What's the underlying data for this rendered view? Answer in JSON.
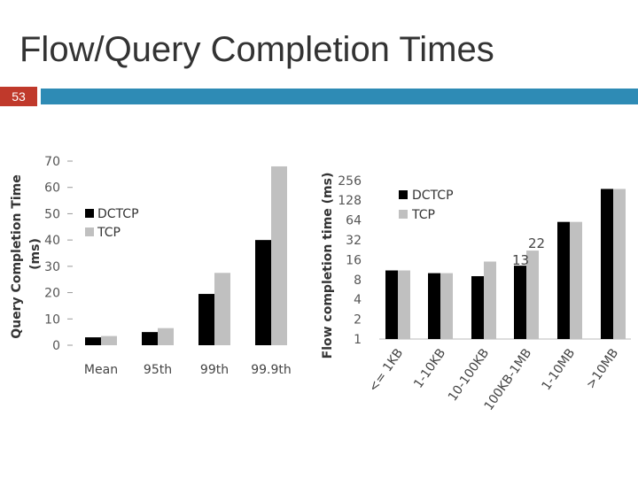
{
  "slide": {
    "title": "Flow/Query Completion Times",
    "number": "53"
  },
  "colors": {
    "dctcp": "#000000",
    "tcp": "#c0c0c0",
    "accent_strip": "#2e8bb5",
    "number_box": "#c0392b"
  },
  "chart_data": [
    {
      "type": "bar",
      "categories": [
        "Mean",
        "95th",
        "99th",
        "99.9th"
      ],
      "series": [
        {
          "name": "DCTCP",
          "values": [
            3,
            5,
            19.5,
            40
          ]
        },
        {
          "name": "TCP",
          "values": [
            3.5,
            6.5,
            27.5,
            68
          ]
        }
      ],
      "ylabel": "Query Completion Time (ms)",
      "ylim": [
        0,
        70
      ],
      "yticks": [
        "0",
        "10",
        "20",
        "30",
        "40",
        "50",
        "60",
        "70"
      ],
      "legend": "left"
    },
    {
      "type": "bar",
      "categories": [
        "<= 1KB",
        "1-10KB",
        "10-100KB",
        "100KB-1MB",
        "1-10MB",
        ">10MB"
      ],
      "series": [
        {
          "name": "DCTCP",
          "values": [
            11,
            10,
            9,
            13,
            60,
            190
          ]
        },
        {
          "name": "TCP",
          "values": [
            11,
            10,
            15,
            22,
            60,
            190
          ]
        }
      ],
      "ylabel": "Flow completion time (ms)",
      "yscale": "log2",
      "ylim": [
        1,
        256
      ],
      "yticks": [
        "1",
        "2",
        "4",
        "8",
        "16",
        "32",
        "64",
        "128",
        "256"
      ],
      "annotations": [
        "13",
        "22"
      ],
      "legend": "top-left"
    }
  ]
}
